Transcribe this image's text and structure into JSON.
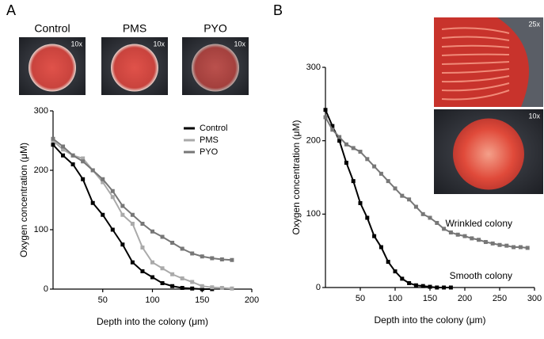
{
  "chart_data": [
    {
      "type": "line",
      "panel_label": "A",
      "images": [
        {
          "label": "Control",
          "magnification": "10x"
        },
        {
          "label": "PMS",
          "magnification": "10x"
        },
        {
          "label": "PYO",
          "magnification": "10x"
        }
      ],
      "xlabel": "Depth into the colony (μm)",
      "ylabel": "Oxygen concentration (μM)",
      "xlim": [
        0,
        200
      ],
      "xticks": [
        50,
        100,
        150,
        200
      ],
      "ylim": [
        0,
        300
      ],
      "yticks": [
        0,
        100,
        200,
        300
      ],
      "legend": "upper right",
      "series": [
        {
          "name": "Control",
          "color": "#000000",
          "x": [
            0,
            10,
            20,
            30,
            40,
            50,
            60,
            70,
            80,
            90,
            100,
            110,
            120,
            130,
            140,
            150,
            160
          ],
          "values": [
            243,
            225,
            210,
            185,
            145,
            125,
            100,
            75,
            45,
            30,
            20,
            10,
            5,
            2,
            1,
            0,
            0
          ]
        },
        {
          "name": "PMS",
          "color": "#aaaaaa",
          "x": [
            0,
            10,
            20,
            30,
            40,
            50,
            60,
            70,
            80,
            90,
            100,
            110,
            120,
            130,
            140,
            150,
            160,
            170,
            180
          ],
          "values": [
            250,
            235,
            225,
            220,
            200,
            180,
            155,
            125,
            110,
            70,
            45,
            35,
            25,
            18,
            12,
            5,
            3,
            2,
            1
          ]
        },
        {
          "name": "PYO",
          "color": "#777777",
          "x": [
            0,
            10,
            20,
            30,
            40,
            50,
            60,
            70,
            80,
            90,
            100,
            110,
            120,
            130,
            140,
            150,
            160,
            170,
            180
          ],
          "values": [
            253,
            240,
            225,
            215,
            200,
            185,
            165,
            140,
            125,
            110,
            97,
            88,
            78,
            68,
            60,
            55,
            52,
            50,
            49
          ]
        }
      ]
    },
    {
      "type": "line",
      "panel_label": "B",
      "images": [
        {
          "magnification": "25x"
        },
        {
          "magnification": "10x"
        }
      ],
      "xlabel": "Depth into the colony (μm)",
      "ylabel": "Oxygen concentration (μM)",
      "xlim": [
        0,
        300
      ],
      "xticks": [
        50,
        100,
        150,
        200,
        250,
        300
      ],
      "ylim": [
        0,
        300
      ],
      "yticks": [
        0,
        100,
        200,
        300
      ],
      "legend": false,
      "series": [
        {
          "name": "Smooth colony",
          "color": "#000000",
          "x": [
            0,
            10,
            20,
            30,
            40,
            50,
            60,
            70,
            80,
            90,
            100,
            110,
            120,
            130,
            140,
            150,
            160,
            170,
            180
          ],
          "values": [
            242,
            220,
            200,
            170,
            145,
            115,
            95,
            70,
            55,
            35,
            22,
            12,
            6,
            3,
            2,
            1,
            0,
            0,
            0
          ]
        },
        {
          "name": "Wrinkled colony",
          "color": "#777777",
          "x": [
            0,
            10,
            20,
            30,
            40,
            50,
            60,
            70,
            80,
            90,
            100,
            110,
            120,
            130,
            140,
            150,
            160,
            170,
            180,
            190,
            200,
            210,
            220,
            230,
            240,
            250,
            260,
            270,
            280,
            290
          ],
          "values": [
            232,
            215,
            205,
            195,
            190,
            185,
            175,
            165,
            155,
            145,
            135,
            125,
            120,
            110,
            100,
            95,
            88,
            80,
            75,
            72,
            70,
            67,
            65,
            62,
            60,
            58,
            57,
            55,
            55,
            54
          ]
        }
      ]
    }
  ]
}
